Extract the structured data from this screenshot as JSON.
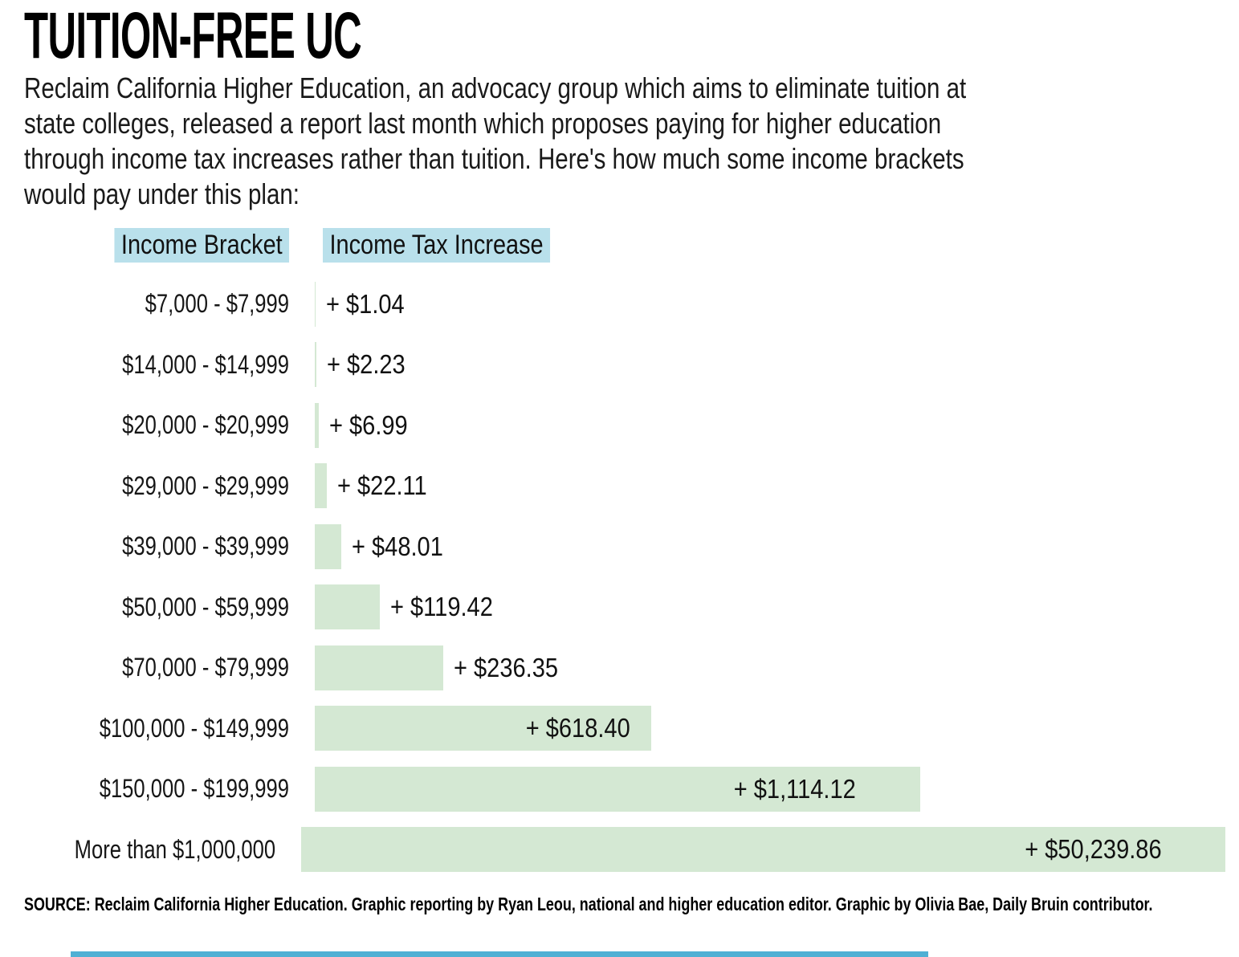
{
  "header": {
    "title": "TUITION-FREE UC",
    "intro_lines": [
      "Reclaim California Higher Education, an advocacy group which aims to eliminate tuition at",
      "state colleges, released a report last month which proposes paying for higher education",
      "through income tax increases rather than tuition. Here's how much some income brackets",
      "would pay under this plan:"
    ]
  },
  "chart_data": {
    "type": "bar",
    "orientation": "horizontal",
    "title": "",
    "xlabel": "",
    "ylabel": "",
    "legend": "none",
    "grid": false,
    "column_headers": {
      "bracket": "Income Bracket",
      "increase": "Income Tax Increase"
    },
    "categories": [
      "$7,000 - $7,999",
      "$14,000 - $14,999",
      "$20,000 - $20,999",
      "$29,000 - $29,999",
      "$39,000 - $39,999",
      "$50,000 - $59,999",
      "$70,000 - $79,999",
      "$100,000 - $149,999",
      "$150,000 - $199,999",
      "More than $1,000,000"
    ],
    "values": [
      1.04,
      2.23,
      6.99,
      22.11,
      48.01,
      119.42,
      236.35,
      618.4,
      1114.12,
      50239.86
    ],
    "value_labels": [
      "+ $1.04",
      "+ $2.23",
      "+ $6.99",
      "+ $22.11",
      "+ $48.01",
      "+ $119.42",
      "+ $236.35",
      "+ $618.40",
      "+ $1,114.12",
      "+ $50,239.86"
    ],
    "bar_color": "#d4e8d3",
    "header_highlight_color": "#b9e0eb",
    "last_bar_clipped_at_right_edge": true
  },
  "footer": {
    "source": "SOURCE: Reclaim California Higher Education. Graphic reporting by Ryan Leou, national and higher education editor. Graphic by Olivia Bae, Daily Bruin contributor.",
    "accent_bar_color": "#4fb0d4"
  }
}
